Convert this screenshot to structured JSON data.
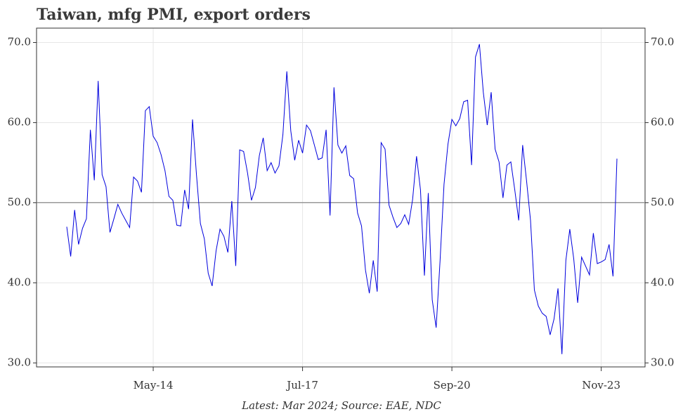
{
  "chart_data": {
    "type": "line",
    "title": "Taiwan, mfg PMI, export orders",
    "footnote": "Latest: Mar 2024; Source: EAE, NDC",
    "x": [
      "Jul-12",
      "Aug-12",
      "Sep-12",
      "Oct-12",
      "Nov-12",
      "Dec-12",
      "Jan-13",
      "Feb-13",
      "Mar-13",
      "Apr-13",
      "May-13",
      "Jun-13",
      "Jul-13",
      "Aug-13",
      "Sep-13",
      "Oct-13",
      "Nov-13",
      "Dec-13",
      "Jan-14",
      "Feb-14",
      "Mar-14",
      "Apr-14",
      "May-14",
      "Jun-14",
      "Jul-14",
      "Aug-14",
      "Sep-14",
      "Oct-14",
      "Nov-14",
      "Dec-14",
      "Jan-15",
      "Feb-15",
      "Mar-15",
      "Apr-15",
      "May-15",
      "Jun-15",
      "Jul-15",
      "Aug-15",
      "Sep-15",
      "Oct-15",
      "Nov-15",
      "Dec-15",
      "Jan-16",
      "Feb-16",
      "Mar-16",
      "Apr-16",
      "May-16",
      "Jun-16",
      "Jul-16",
      "Aug-16",
      "Sep-16",
      "Oct-16",
      "Nov-16",
      "Dec-16",
      "Jan-17",
      "Feb-17",
      "Mar-17",
      "Apr-17",
      "May-17",
      "Jun-17",
      "Jul-17",
      "Aug-17",
      "Sep-17",
      "Oct-17",
      "Nov-17",
      "Dec-17",
      "Jan-18",
      "Feb-18",
      "Mar-18",
      "Apr-18",
      "May-18",
      "Jun-18",
      "Jul-18",
      "Aug-18",
      "Sep-18",
      "Oct-18",
      "Nov-18",
      "Dec-18",
      "Jan-19",
      "Feb-19",
      "Mar-19",
      "Apr-19",
      "May-19",
      "Jun-19",
      "Jul-19",
      "Aug-19",
      "Sep-19",
      "Oct-19",
      "Nov-19",
      "Dec-19",
      "Jan-20",
      "Feb-20",
      "Mar-20",
      "Apr-20",
      "May-20",
      "Jun-20",
      "Jul-20",
      "Aug-20",
      "Sep-20",
      "Oct-20",
      "Nov-20",
      "Dec-20",
      "Jan-21",
      "Feb-21",
      "Mar-21",
      "Apr-21",
      "May-21",
      "Jun-21",
      "Jul-21",
      "Aug-21",
      "Sep-21",
      "Oct-21",
      "Nov-21",
      "Dec-21",
      "Jan-22",
      "Feb-22",
      "Mar-22",
      "Apr-22",
      "May-22",
      "Jun-22",
      "Jul-22",
      "Aug-22",
      "Sep-22",
      "Oct-22",
      "Nov-22",
      "Dec-22",
      "Jan-23",
      "Feb-23",
      "Mar-23",
      "Apr-23",
      "May-23",
      "Jun-23",
      "Jul-23",
      "Aug-23",
      "Sep-23",
      "Oct-23",
      "Nov-23",
      "Dec-23",
      "Jan-24",
      "Feb-24",
      "Mar-24"
    ],
    "series": [
      {
        "color": "#0000dd",
        "values": [
          47.0,
          43.3,
          49.1,
          44.8,
          46.8,
          48.0,
          59.1,
          52.8,
          65.2,
          53.5,
          52.0,
          46.3,
          48.0,
          49.8,
          48.7,
          47.8,
          46.9,
          53.2,
          52.7,
          51.3,
          61.5,
          62.0,
          58.3,
          57.5,
          56.0,
          54.0,
          50.8,
          50.3,
          47.2,
          47.1,
          51.6,
          49.2,
          60.4,
          53.5,
          47.4,
          45.5,
          41.2,
          39.6,
          44.0,
          46.7,
          45.8,
          43.8,
          50.2,
          42.1,
          56.6,
          56.4,
          53.7,
          50.3,
          51.9,
          55.9,
          58.1,
          54.0,
          55.0,
          53.7,
          54.6,
          58.5,
          66.4,
          59.0,
          55.3,
          57.8,
          56.2,
          59.7,
          59.0,
          57.2,
          55.4,
          55.6,
          59.1,
          48.4,
          64.4,
          57.2,
          56.2,
          57.1,
          53.4,
          53.0,
          48.7,
          47.1,
          41.6,
          38.7,
          42.8,
          38.9,
          57.5,
          56.7,
          49.7,
          48.2,
          46.9,
          47.4,
          48.5,
          47.3,
          50.4,
          55.8,
          51.6,
          40.9,
          51.2,
          37.9,
          34.4,
          42.8,
          52.3,
          57.3,
          60.4,
          59.6,
          60.5,
          62.6,
          62.8,
          54.7,
          68.2,
          69.8,
          63.8,
          59.7,
          63.8,
          56.7,
          55.1,
          50.6,
          54.7,
          55.1,
          51.6,
          47.8,
          57.2,
          52.7,
          47.8,
          39.1,
          37.1,
          36.2,
          35.8,
          33.5,
          35.5,
          39.3,
          31.1,
          42.8,
          46.7,
          43.0,
          37.5,
          43.2,
          42.1,
          41.0,
          46.2,
          42.4,
          42.6,
          42.9,
          44.8,
          40.8,
          55.5
        ]
      }
    ],
    "xticks": [
      "May-14",
      "Jul-17",
      "Sep-20",
      "Nov-23"
    ],
    "ylim": [
      29.5,
      71.8
    ],
    "yticks": [
      {
        "value": 30,
        "label": "30.0"
      },
      {
        "value": 40,
        "label": "40.0"
      },
      {
        "value": 50,
        "label": "50.0"
      },
      {
        "value": 60,
        "label": "60.0"
      },
      {
        "value": 70,
        "label": "70.0"
      }
    ],
    "y2lim": [
      29.5,
      71.8
    ],
    "y2ticks": [
      {
        "value": 30,
        "label": "30.0"
      },
      {
        "value": 40,
        "label": "40.0"
      },
      {
        "value": 50,
        "label": "50.0"
      },
      {
        "value": 60,
        "label": "60.0"
      },
      {
        "value": 70,
        "label": "70.0"
      }
    ],
    "reference_line": 50,
    "grid": true
  }
}
